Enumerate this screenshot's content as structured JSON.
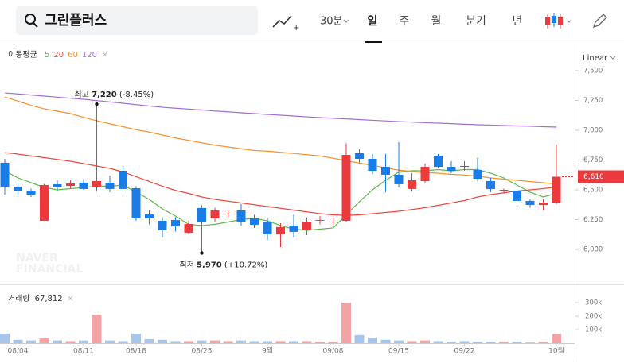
{
  "search": {
    "query": "그린플러스"
  },
  "toolbar": {
    "interval": "30분",
    "periods": [
      "일",
      "주",
      "월",
      "분기",
      "년"
    ],
    "scale": "Linear"
  },
  "watermark": [
    "NAVER",
    "FINANCIAL"
  ],
  "chart_data": [
    {
      "type": "candlestick",
      "legend_title": "이동평균",
      "categories": [
        null,
        "08/04",
        null,
        null,
        null,
        null,
        "08/11",
        null,
        null,
        null,
        "08/18",
        null,
        null,
        null,
        null,
        "08/25",
        null,
        null,
        null,
        null,
        "9월",
        null,
        null,
        null,
        null,
        "09/08",
        null,
        null,
        null,
        null,
        "09/15",
        null,
        null,
        null,
        null,
        "09/22",
        null,
        null,
        null,
        null,
        null,
        null,
        "10월"
      ],
      "open": [
        6727,
        6527,
        6493,
        6240,
        6547,
        6533,
        6560,
        6520,
        6560,
        6660,
        6513,
        6293,
        6240,
        6247,
        6140,
        6347,
        6260,
        6293,
        6327,
        6260,
        6227,
        6127,
        6200,
        6160,
        6240,
        6227,
        6240,
        6807,
        6760,
        6693,
        6627,
        6507,
        6573,
        6787,
        6693,
        6700,
        6667,
        6573,
        6493,
        6493,
        6407,
        6373,
        6393
      ],
      "high": [
        6760,
        6560,
        6510,
        6550,
        6580,
        6580,
        6590,
        7220,
        6620,
        6690,
        6530,
        6330,
        6270,
        6270,
        6240,
        6370,
        6350,
        6330,
        6380,
        6290,
        6260,
        6220,
        6290,
        6270,
        6280,
        6270,
        6890,
        6840,
        6800,
        6800,
        6900,
        6640,
        6720,
        6800,
        6740,
        6740,
        6770,
        6600,
        6510,
        6510,
        6420,
        6420,
        6880
      ],
      "low": [
        6460,
        6460,
        6440,
        6240,
        6490,
        6510,
        6500,
        6490,
        6480,
        6490,
        6240,
        6210,
        6100,
        6150,
        6130,
        5970,
        6230,
        6270,
        6200,
        6180,
        6080,
        6020,
        6100,
        6120,
        6210,
        6200,
        6230,
        6730,
        6630,
        6480,
        6520,
        6490,
        6560,
        6680,
        6640,
        6660,
        6570,
        6480,
        6470,
        6380,
        6350,
        6330,
        6380
      ],
      "close": [
        6527,
        6493,
        6460,
        6540,
        6520,
        6553,
        6507,
        6573,
        6507,
        6507,
        6260,
        6260,
        6160,
        6193,
        6213,
        6227,
        6327,
        6300,
        6227,
        6207,
        6127,
        6187,
        6147,
        6233,
        6247,
        6233,
        6793,
        6760,
        6660,
        6627,
        6547,
        6580,
        6693,
        6693,
        6660,
        6693,
        6593,
        6507,
        6500,
        6407,
        6373,
        6393,
        6610
      ],
      "last_label": "6,610",
      "up_color": "#ea3a3d",
      "down_color": "#1a7ce6",
      "annotations": [
        {
          "label": "최고",
          "value": 7220,
          "value_label": "7,220",
          "change": "(-8.45%)"
        },
        {
          "label": "최저",
          "value": 5970,
          "value_label": "5,970",
          "change": "(+10.72%)"
        }
      ],
      "ylim": [
        5713,
        7707
      ],
      "yticks": [
        {
          "value": 6000,
          "label": "6,000"
        },
        {
          "value": 6250,
          "label": "6,250"
        },
        {
          "value": 6500,
          "label": "6,500"
        },
        {
          "value": 6750,
          "label": "6,750"
        },
        {
          "value": 7000,
          "label": "7,000"
        },
        {
          "value": 7250,
          "label": "7,250"
        },
        {
          "value": 7500,
          "label": "7,500"
        }
      ],
      "series": [
        {
          "name": "5",
          "color": "#5fb84a",
          "values": [
            6660,
            6600,
            6560,
            6520,
            6500,
            6510,
            6520,
            6530,
            6530,
            6540,
            6480,
            6420,
            6340,
            6280,
            6210,
            6200,
            6210,
            6230,
            6250,
            6260,
            6240,
            6200,
            6170,
            6160,
            6170,
            6180,
            6290,
            6400,
            6500,
            6580,
            6650,
            6660,
            6660,
            6670,
            6660,
            6670,
            6670,
            6640,
            6600,
            6540,
            6480,
            6440,
            6470
          ]
        },
        {
          "name": "20",
          "color": "#ec4a3e",
          "values": [
            6813,
            6800,
            6785,
            6770,
            6755,
            6740,
            6720,
            6700,
            6680,
            6650,
            6610,
            6570,
            6530,
            6495,
            6470,
            6440,
            6420,
            6405,
            6390,
            6375,
            6360,
            6345,
            6330,
            6315,
            6300,
            6290,
            6285,
            6290,
            6300,
            6310,
            6320,
            6335,
            6350,
            6370,
            6390,
            6410,
            6440,
            6460,
            6475,
            6490,
            6500,
            6510,
            6525
          ]
        },
        {
          "name": "60",
          "color": "#f39430",
          "values": [
            7280,
            7245,
            7210,
            7180,
            7160,
            7140,
            7110,
            7080,
            7055,
            7030,
            7005,
            6985,
            6960,
            6935,
            6915,
            6895,
            6875,
            6860,
            6845,
            6830,
            6825,
            6815,
            6805,
            6795,
            6785,
            6765,
            6745,
            6725,
            6705,
            6685,
            6665,
            6655,
            6645,
            6640,
            6630,
            6625,
            6615,
            6600,
            6590,
            6580,
            6570,
            6560,
            6550
          ]
        },
        {
          "name": "120",
          "color": "#a66cd6",
          "values": [
            7313,
            7305,
            7296,
            7287,
            7278,
            7269,
            7260,
            7249,
            7238,
            7227,
            7215,
            7204,
            7193,
            7185,
            7178,
            7170,
            7162,
            7155,
            7147,
            7140,
            7133,
            7127,
            7120,
            7113,
            7107,
            7101,
            7096,
            7090,
            7084,
            7079,
            7073,
            7069,
            7064,
            7060,
            7056,
            7051,
            7047,
            7044,
            7040,
            7037,
            7034,
            7030,
            7027
          ]
        }
      ]
    },
    {
      "type": "bar",
      "title": "거래량",
      "value_label": "67,812",
      "up_color": "#f4a3a5",
      "down_color": "#a7c6ee",
      "values": [
        70000,
        25000,
        20000,
        35000,
        20000,
        15000,
        20000,
        210000,
        20000,
        15000,
        70000,
        30000,
        25000,
        15000,
        15000,
        20000,
        20000,
        15000,
        20000,
        15000,
        15000,
        15000,
        15000,
        15000,
        10000,
        10000,
        300000,
        60000,
        40000,
        25000,
        20000,
        15000,
        20000,
        15000,
        10000,
        15000,
        10000,
        10000,
        10000,
        10000,
        5000,
        10000,
        67812
      ],
      "ylim": [
        0,
        412000
      ],
      "yticks": [
        {
          "value": 100000,
          "label": "100k"
        },
        {
          "value": 200000,
          "label": "200k"
        },
        {
          "value": 300000,
          "label": "300k"
        }
      ]
    }
  ]
}
